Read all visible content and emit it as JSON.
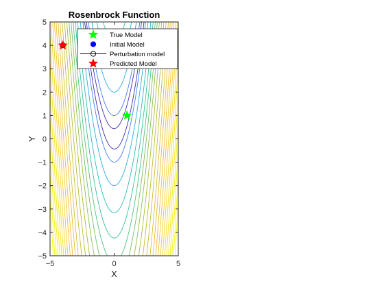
{
  "chart_data": {
    "type": "contour",
    "title": "Rosenbrock Function",
    "xlabel": "X",
    "ylabel": "Y",
    "xlim": [
      -5,
      5
    ],
    "ylim": [
      -5,
      5
    ],
    "xticks": [
      -5,
      0,
      5
    ],
    "yticks": [
      -5,
      -4,
      -3,
      -2,
      -1,
      0,
      1,
      2,
      3,
      4,
      5
    ],
    "function": "f(x,y) = (1 - x)^2 + 100 (y - x^2)^2",
    "contour_levels": [
      20,
      100,
      400,
      1000,
      1800,
      2800,
      4000,
      5500,
      7500,
      10000,
      13000,
      16500,
      20000,
      24000,
      28000,
      32500,
      37000,
      42000,
      47000,
      52500,
      58000,
      64000,
      70000,
      76000
    ],
    "colormap": [
      "#3e26a8",
      "#4367fd",
      "#2f9df5",
      "#1cb6ca",
      "#36c28f",
      "#a5be30",
      "#f4bb2a",
      "#f9fb0e"
    ],
    "legend_position": "top-right",
    "series": [
      {
        "name": "True Model",
        "marker": "pentagram",
        "color": "#00ff00",
        "points": [
          [
            1,
            1
          ]
        ]
      },
      {
        "name": "Initial Model",
        "marker": "circle-filled",
        "color": "#0000ff",
        "points": [
          [
            -4,
            4
          ]
        ]
      },
      {
        "name": "Perturbation model",
        "marker": "circle-line",
        "color": "#000000",
        "points": [
          [
            -4,
            4
          ]
        ]
      },
      {
        "name": "Predicted Model",
        "marker": "pentagram",
        "color": "#ff0000",
        "points": [
          [
            -4,
            4
          ]
        ]
      }
    ]
  }
}
